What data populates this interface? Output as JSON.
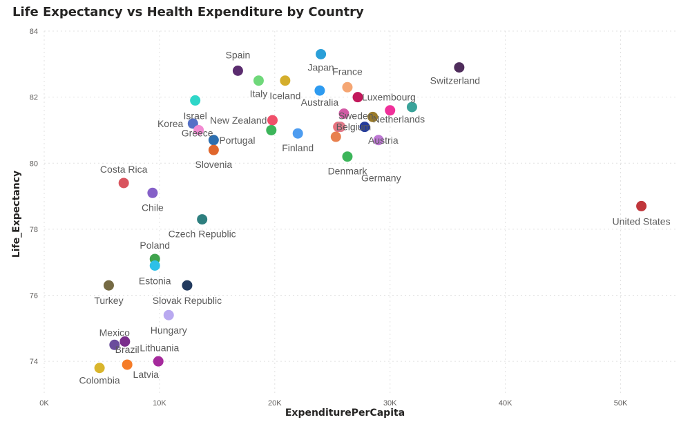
{
  "chart_data": {
    "type": "scatter",
    "title": "Life Expectancy vs Health Expenditure by Country",
    "xlabel": "ExpenditurePerCapita",
    "ylabel": "Life_Expectancy",
    "xlim": [
      0,
      55000
    ],
    "ylim": [
      73,
      84
    ],
    "xticks": [
      0,
      10000,
      20000,
      30000,
      40000,
      50000
    ],
    "xtick_labels": [
      "0K",
      "10K",
      "20K",
      "30K",
      "40K",
      "50K"
    ],
    "yticks": [
      74,
      76,
      78,
      80,
      82,
      84
    ],
    "ytick_labels": [
      "74",
      "76",
      "78",
      "80",
      "82",
      "84"
    ],
    "grid": true,
    "legend": "none",
    "points": [
      {
        "label": "Spain",
        "x": 16800,
        "y": 82.8,
        "color": "#5B2C6F"
      },
      {
        "label": "Japan",
        "x": 24000,
        "y": 83.3,
        "color": "#2A9FD8"
      },
      {
        "label": "France",
        "x": 26300,
        "y": 82.3,
        "color": "#F5A673"
      },
      {
        "label": "Switzerland",
        "x": 36000,
        "y": 82.9,
        "color": "#4F2D5C"
      },
      {
        "label": "Italy",
        "x": 18600,
        "y": 82.5,
        "color": "#6FD87A"
      },
      {
        "label": "Iceland",
        "x": 20900,
        "y": 82.5,
        "color": "#D4AE2C"
      },
      {
        "label": "Australia",
        "x": 23900,
        "y": 82.2,
        "color": "#2E9BF0"
      },
      {
        "label": "Luxembourg",
        "x": 27200,
        "y": 82.0,
        "color": "#C2185B"
      },
      {
        "label": "Israel",
        "x": 13100,
        "y": 81.9,
        "color": "#2ED6C8"
      },
      {
        "label": "Sweden",
        "x": 26000,
        "y": 81.5,
        "color": "#D25AA5"
      },
      {
        "label": "Netherlands",
        "x": 28500,
        "y": 81.4,
        "color": "#9A7B2A"
      },
      {
        "label": "Korea",
        "x": 12900,
        "y": 81.2,
        "color": "#5470C6"
      },
      {
        "label": "New Zealand",
        "x": 19800,
        "y": 81.3,
        "color": "#F0506A"
      },
      {
        "label": "Belgium",
        "x": 25500,
        "y": 81.1,
        "color": "#E8707A"
      },
      {
        "label": "Finland",
        "x": 22000,
        "y": 80.9,
        "color": "#4D9CF0"
      },
      {
        "label": "Greece",
        "x": 13400,
        "y": 81.0,
        "color": "#F28BD2"
      },
      {
        "label": "Portugal",
        "x": 14700,
        "y": 80.7,
        "color": "#2C6EAF"
      },
      {
        "label": "Austria",
        "x": 29000,
        "y": 80.7,
        "color": "#BD78D3"
      },
      {
        "label": "Slovenia",
        "x": 14700,
        "y": 80.4,
        "color": "#E0662C"
      },
      {
        "label": "Denmark",
        "x": 26300,
        "y": 80.2,
        "color": "#3CB55A"
      },
      {
        "label": "Germany",
        "x": 27800,
        "y": 81.1,
        "color": "#253C9C"
      },
      {
        "label": "Costa Rica",
        "x": 6900,
        "y": 79.4,
        "color": "#D9545E"
      },
      {
        "label": "Chile",
        "x": 9400,
        "y": 79.1,
        "color": "#8560C8"
      },
      {
        "label": "United States",
        "x": 51800,
        "y": 78.7,
        "color": "#C0363B"
      },
      {
        "label": "Czech Republic",
        "x": 13700,
        "y": 78.3,
        "color": "#2E7F7F"
      },
      {
        "label": "Poland",
        "x": 9600,
        "y": 77.1,
        "color": "#3FA34D"
      },
      {
        "label": "Estonia",
        "x": 9600,
        "y": 76.9,
        "color": "#2DC0E8"
      },
      {
        "label": "Turkey",
        "x": 5600,
        "y": 76.3,
        "color": "#756A44"
      },
      {
        "label": "Slovak Republic",
        "x": 12400,
        "y": 76.3,
        "color": "#223A5E"
      },
      {
        "label": "Hungary",
        "x": 10800,
        "y": 75.4,
        "color": "#B9A9F0"
      },
      {
        "label": "Mexico",
        "x": 6100,
        "y": 74.5,
        "color": "#6A4C9C"
      },
      {
        "label": "Lithuania",
        "x": 7000,
        "y": 74.6,
        "color": "#7A2E8C"
      },
      {
        "label": "Brazil",
        "x": 7200,
        "y": 73.9,
        "color": "#F57C28"
      },
      {
        "label": "Latvia",
        "x": 9900,
        "y": 74.0,
        "color": "#A52A9C"
      },
      {
        "label": "Colombia",
        "x": 4800,
        "y": 73.8,
        "color": "#D9B52C"
      },
      {
        "label": "Sweden-2",
        "x": 25700,
        "y": 81.1,
        "color": "#E07A8A"
      },
      {
        "label": "Belgium-2",
        "x": 25300,
        "y": 80.8,
        "color": "#E8804E"
      },
      {
        "label": "Denmark-2",
        "x": 19700,
        "y": 81.0,
        "color": "#3CB55A"
      },
      {
        "label": "Netherlands-2",
        "x": 30000,
        "y": 81.6,
        "color": "#F0309A"
      },
      {
        "label": "Luxembourg-2",
        "x": 31900,
        "y": 81.7,
        "color": "#3AA39A"
      }
    ]
  }
}
